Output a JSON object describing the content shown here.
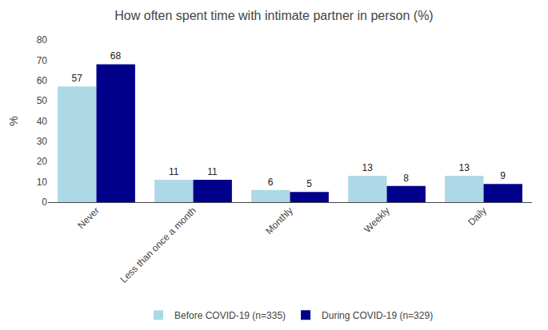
{
  "chart_data": {
    "type": "bar",
    "title": "How often spent time with intimate partner in person (%)",
    "ylabel": "%",
    "categories": [
      "Never",
      "Less than once a month",
      "Monthly",
      "Weekly",
      "Daily"
    ],
    "series": [
      {
        "name": "Before COVID-19 (n=335)",
        "color": "#add8e6",
        "values": [
          57,
          11,
          6,
          13,
          13
        ]
      },
      {
        "name": "During COVID-19 (n=329)",
        "color": "#00008b",
        "values": [
          68,
          11,
          5,
          8,
          9
        ]
      }
    ],
    "ylim": [
      0,
      80
    ],
    "yticks": [
      0,
      10,
      20,
      30,
      40,
      50,
      60,
      70,
      80
    ],
    "grid": false,
    "legend": "bottom",
    "data_labels": true
  }
}
